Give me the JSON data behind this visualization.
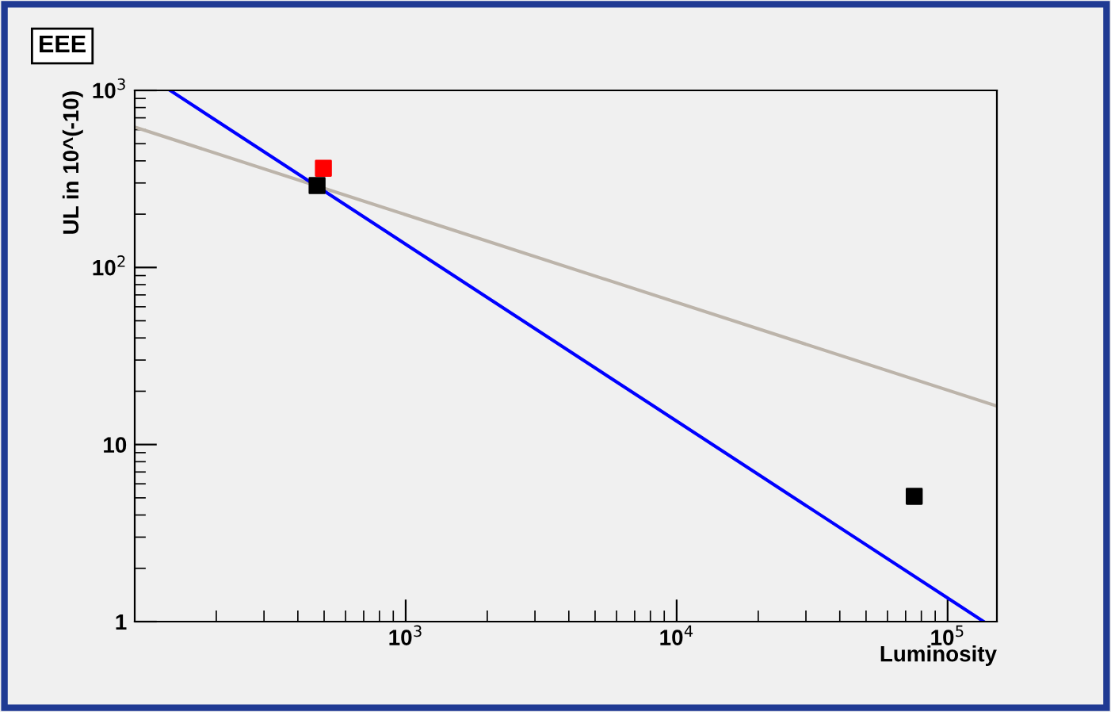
{
  "chart_data": {
    "type": "scatter",
    "title": "EEE",
    "xlabel": "Luminosity",
    "ylabel": "UL in 10^(-10)",
    "log": "xy",
    "grid": false,
    "marker": "square",
    "xlim": [
      100,
      152000
    ],
    "ylim": [
      1,
      1000
    ],
    "xticks": [
      {
        "value": 1000,
        "label": "10$^{3}$"
      },
      {
        "value": 10000,
        "label": "10$^{4}$"
      },
      {
        "value": 100000,
        "label": "10$^{5}$"
      }
    ],
    "yticks": [
      1,
      10,
      {
        "value": 100,
        "label": "10$^{2}$"
      },
      {
        "value": 1000,
        "label": "10$^{3}$"
      }
    ],
    "series": [
      {
        "type": "line",
        "marker": "none",
        "color": "#bcb4aa",
        "x": [
          100,
          152000
        ],
        "values": [
          621,
          16.5
        ]
      },
      {
        "type": "line",
        "marker": "none",
        "color": "#0000ff",
        "x": [
          135,
          136000
        ],
        "values": [
          1000,
          1
        ]
      },
      {
        "color": "#000000",
        "x": [
          471,
          75300
        ],
        "values": [
          290,
          5.1
        ]
      },
      {
        "color": "#ff0000",
        "x": [
          497
        ],
        "values": [
          363
        ]
      }
    ]
  }
}
